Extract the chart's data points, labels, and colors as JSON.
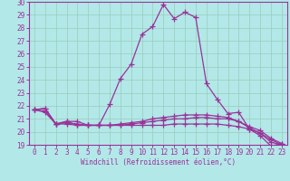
{
  "xlabel": "Windchill (Refroidissement éolien,°C)",
  "x": [
    0,
    1,
    2,
    3,
    4,
    5,
    6,
    7,
    8,
    9,
    10,
    11,
    12,
    13,
    14,
    15,
    16,
    17,
    18,
    19,
    20,
    21,
    22,
    23
  ],
  "line1": [
    21.7,
    21.8,
    20.6,
    20.8,
    20.8,
    20.5,
    20.5,
    22.1,
    24.1,
    25.2,
    27.5,
    28.1,
    29.8,
    28.7,
    29.2,
    28.8,
    23.7,
    22.5,
    21.4,
    21.5,
    20.2,
    19.7,
    18.9,
    19.1
  ],
  "line2": [
    21.7,
    21.8,
    20.6,
    20.8,
    20.5,
    20.5,
    20.5,
    20.5,
    20.6,
    20.7,
    20.8,
    21.0,
    21.1,
    21.2,
    21.3,
    21.3,
    21.3,
    21.2,
    21.1,
    20.8,
    20.3,
    19.9,
    19.2,
    19.0
  ],
  "line3": [
    21.7,
    21.5,
    20.6,
    20.6,
    20.5,
    20.5,
    20.5,
    20.5,
    20.5,
    20.5,
    20.5,
    20.5,
    20.5,
    20.6,
    20.6,
    20.6,
    20.6,
    20.6,
    20.5,
    20.4,
    20.2,
    19.9,
    19.4,
    19.0
  ],
  "line4": [
    21.7,
    21.6,
    20.6,
    20.7,
    20.6,
    20.5,
    20.5,
    20.5,
    20.5,
    20.6,
    20.7,
    20.8,
    20.9,
    21.0,
    21.0,
    21.1,
    21.1,
    21.0,
    21.0,
    20.8,
    20.4,
    20.1,
    19.5,
    19.1
  ],
  "ylim": [
    19,
    30
  ],
  "yticks": [
    19,
    20,
    21,
    22,
    23,
    24,
    25,
    26,
    27,
    28,
    29,
    30
  ],
  "xticks": [
    0,
    1,
    2,
    3,
    4,
    5,
    6,
    7,
    8,
    9,
    10,
    11,
    12,
    13,
    14,
    15,
    16,
    17,
    18,
    19,
    20,
    21,
    22,
    23
  ],
  "line_color": "#993399",
  "bg_color": "#b3e8e8",
  "grid_color": "#99ccbb"
}
